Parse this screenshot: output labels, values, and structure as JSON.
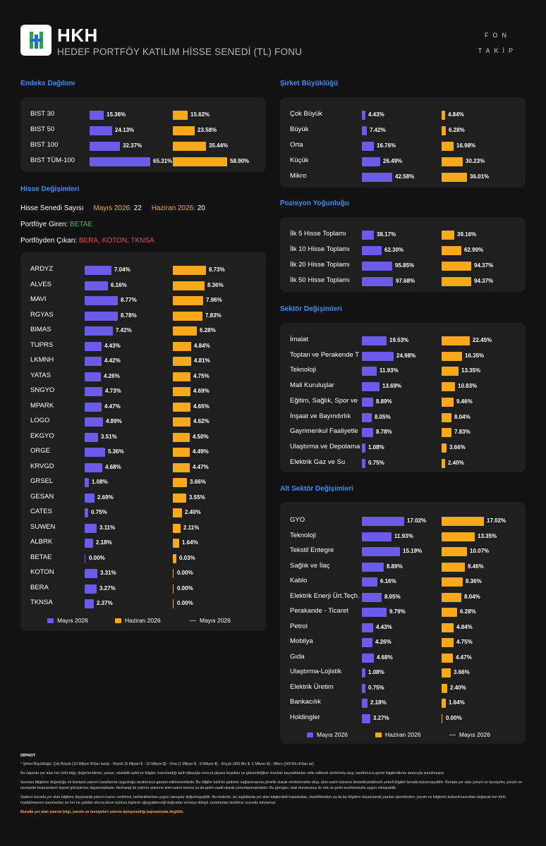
{
  "header": {
    "title": "HKH",
    "subtitle": "HEDEF PORTFÖY KATILIM HİSSE SENEDİ (TL) FONU",
    "brand_line1": "FON",
    "brand_line2": "TAKİP"
  },
  "colors": {
    "may": "#6a5ce8",
    "june": "#f8a91b",
    "accent": "#3b8df0"
  },
  "sections": {
    "index": "Endeks Dağılımı",
    "size": "Şirket Büyüklüğü",
    "stock_changes": "Hisse Değişimleri",
    "concentration": "Pozisyon Yoğunluğu",
    "sector": "Sektör Değişimleri",
    "subsector": "Alt Sektör Değişimleri"
  },
  "index": [
    {
      "label": "BIST 30",
      "may": "15.36%",
      "jun": "15.62%"
    },
    {
      "label": "BIST 50",
      "may": "24.13%",
      "jun": "23.58%"
    },
    {
      "label": "BIST 100",
      "may": "32.37%",
      "jun": "35.44%"
    },
    {
      "label": "BIST TÜM-100",
      "may": "65.31%",
      "jun": "58.90%"
    }
  ],
  "size": [
    {
      "label": "Çok Büyük",
      "may": "4.43%",
      "jun": "4.84%"
    },
    {
      "label": "Büyük",
      "may": "7.42%",
      "jun": "6.28%"
    },
    {
      "label": "Orta",
      "may": "16.76%",
      "jun": "16.98%"
    },
    {
      "label": "Küçük",
      "may": "26.49%",
      "jun": "30.23%"
    },
    {
      "label": "Mikro",
      "may": "42.58%",
      "jun": "36.01%"
    }
  ],
  "stock_info": {
    "count_label": "Hisse Senedi Sayısı",
    "may_label": "Mayıs 2026:",
    "may_count": "22",
    "jun_label": "Haziran 2026:",
    "jun_count": "20",
    "in_label": "Portföye Giren:",
    "in_value": "BETAE",
    "out_label": "Portföyden Çıkan:",
    "out_value": "BERA, KOTON, TKNSA"
  },
  "stocks": [
    {
      "label": "ARDYZ",
      "may": "7.04%",
      "jun": "8.73%"
    },
    {
      "label": "ALVES",
      "may": "6.16%",
      "jun": "8.36%"
    },
    {
      "label": "MAVI",
      "may": "8.77%",
      "jun": "7.96%"
    },
    {
      "label": "RGYAS",
      "may": "8.78%",
      "jun": "7.83%"
    },
    {
      "label": "BIMAS",
      "may": "7.42%",
      "jun": "6.28%"
    },
    {
      "label": "TUPRS",
      "may": "4.43%",
      "jun": "4.84%"
    },
    {
      "label": "LKMNH",
      "may": "4.42%",
      "jun": "4.81%"
    },
    {
      "label": "YATAS",
      "may": "4.26%",
      "jun": "4.75%"
    },
    {
      "label": "SNGYO",
      "may": "4.73%",
      "jun": "4.69%"
    },
    {
      "label": "MPARK",
      "may": "4.47%",
      "jun": "4.65%"
    },
    {
      "label": "LOGO",
      "may": "4.89%",
      "jun": "4.62%"
    },
    {
      "label": "EKGYO",
      "may": "3.51%",
      "jun": "4.50%"
    },
    {
      "label": "ORGE",
      "may": "5.36%",
      "jun": "4.49%"
    },
    {
      "label": "KRVGD",
      "may": "4.68%",
      "jun": "4.47%"
    },
    {
      "label": "GRSEL",
      "may": "1.08%",
      "jun": "3.66%"
    },
    {
      "label": "GESAN",
      "may": "2.69%",
      "jun": "3.55%"
    },
    {
      "label": "CATES",
      "may": "0.75%",
      "jun": "2.40%"
    },
    {
      "label": "SUWEN",
      "may": "3.11%",
      "jun": "2.11%"
    },
    {
      "label": "ALBRK",
      "may": "2.18%",
      "jun": "1.64%"
    },
    {
      "label": "BETAE",
      "may": "0.00%",
      "jun": "0.03%"
    },
    {
      "label": "KOTON",
      "may": "3.31%",
      "jun": "0.00%"
    },
    {
      "label": "BERA",
      "may": "3.27%",
      "jun": "0.00%"
    },
    {
      "label": "TKNSA",
      "may": "2.37%",
      "jun": "0.00%"
    }
  ],
  "concentration": [
    {
      "label": "İlk 5 Hisse Toplamı",
      "may": "38.17%",
      "jun": "39.16%"
    },
    {
      "label": "İlk 10 Hisse Toplamı",
      "may": "62.30%",
      "jun": "62.90%"
    },
    {
      "label": "İlk 20 Hisse Toplamı",
      "may": "95.85%",
      "jun": "94.37%"
    },
    {
      "label": "İlk 50 Hisse Toplamı",
      "may": "97.68%",
      "jun": "94.37%"
    }
  ],
  "sector": [
    {
      "label": "İmalat",
      "may": "19.53%",
      "jun": "22.45%"
    },
    {
      "label": "Toptan ve Perakende T",
      "may": "24.98%",
      "jun": "16.35%"
    },
    {
      "label": "Teknoloji",
      "may": "11.93%",
      "jun": "13.35%"
    },
    {
      "label": "Mali Kuruluşlar",
      "may": "13.69%",
      "jun": "10.83%"
    },
    {
      "label": "Eğitim, Sağlık, Spor ve",
      "may": "8.89%",
      "jun": "9.46%"
    },
    {
      "label": "İnşaat ve Bayındırlık",
      "may": "8.05%",
      "jun": "8.04%"
    },
    {
      "label": "Gayrimenkul Faaliyetle",
      "may": "8.78%",
      "jun": "7.83%"
    },
    {
      "label": "Ulaştırma ve Depolama",
      "may": "1.08%",
      "jun": "3.66%"
    },
    {
      "label": "Elektrik Gaz ve Su",
      "may": "0.75%",
      "jun": "2.40%"
    }
  ],
  "subsector": [
    {
      "label": "GYO",
      "may": "17.02%",
      "jun": "17.02%"
    },
    {
      "label": "Teknoloji",
      "may": "11.93%",
      "jun": "13.35%"
    },
    {
      "label": "Tekstil Entegre",
      "may": "15.19%",
      "jun": "10.07%"
    },
    {
      "label": "Sağlık ve İlaç",
      "may": "8.89%",
      "jun": "9.46%"
    },
    {
      "label": "Kablo",
      "may": "6.16%",
      "jun": "8.36%"
    },
    {
      "label": "Elektrik Enerji Ürt.Teçh.",
      "may": "8.05%",
      "jun": "8.04%"
    },
    {
      "label": "Perakande - Ticaret",
      "may": "9.79%",
      "jun": "6.28%"
    },
    {
      "label": "Petrol",
      "may": "4.43%",
      "jun": "4.84%"
    },
    {
      "label": "Mobilya",
      "may": "4.26%",
      "jun": "4.75%"
    },
    {
      "label": "Gıda",
      "may": "4.68%",
      "jun": "4.47%"
    },
    {
      "label": "Ulaştırma-Lojistik",
      "may": "1.08%",
      "jun": "3.66%"
    },
    {
      "label": "Elektrik Üretim",
      "may": "0.75%",
      "jun": "2.40%"
    },
    {
      "label": "Bankacılık",
      "may": "2.18%",
      "jun": "1.64%"
    },
    {
      "label": "Holdingler",
      "may": "3.27%",
      "jun": "0.00%"
    }
  ],
  "legend": {
    "may": "Mayıs 2026",
    "jun": "Haziran 2026",
    "line": "Mayıs 2026"
  },
  "footer": {
    "title": "DİPNOT",
    "p1": "* Şirket Büyüklüğü: Çok Büyük (10 Milyon $'dan fazla) - Büyük (5 Milyon $ - 10 Milyon $) - Orta (1 Milyon $ - 5 Milyon $) - Küçük (300 Bin $ -1 Milyon $) - Mikro (300 Bin $'dan az)",
    "p2": "Bu raporda yer alan her türlü bilgi, değerlendirme, yorum, istatistiki şekil ve bilgiler, hazırlandığı tarih itibarıyla mevcut piyasa koşulları ve güvenilirliğine inanılan kaynaklardan elde edilerek derlenmiş olup, tarafımızca genel bilgilendirme amacıyla sunulmuştur.",
    "p3": "Sunulan bilgilerin doğruluğu ve bunların yatırım kararlarına uygunluğu tarafımızca garanti edilmemektedir. Bu bilgiler belli bir getirinin sağlanmasına yönelik olarak verilmemekte olup, alım-satım kararını destekleyebilecek yeterli bilgiler burada bulunmayabilir. Burada yer alan yorum ve tavsiyeler, yorum ve tavsiyede bulunanların kişisel görüşlerine dayanmaktadır. Herhangi bir yatırım aracının alım-satım önerisi ya da getiri vaadi olarak yorumlanmamalıdır. Bu görüşler, mali durumunuz ile risk ve getiri tercihlerinizle uygun olmayabilir.",
    "p4": "Sadece burada yer alan bilgilere dayanarak yatırım kararı verilmesi, beklentilerinize uygun sonuçlar doğurmayabilir. Bu nedenle, bu sayfalarda yer alan bilgilerdeki hatalardan, eksikliklerden ya da bu bilgilere dayanılarak yapılan işlemlerden; yorum ve bilgilerin kullanılmasından doğacak her türlü maddi/manevi zararlardan ve her ne şekilde olursa olsun üçüncü kişilerin uğrayabileceği doğrudan ve/veya dolaylı zararlardan tarafımız sorumlu tutulamaz.",
    "p5": "Burada yer alan yatırım bilgi, yorum ve tavsiyeleri yatırım danışmanlığı kapsamında değildir."
  }
}
